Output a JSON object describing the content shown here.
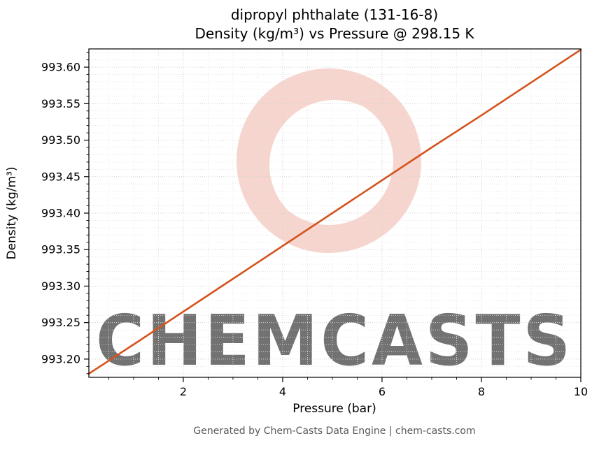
{
  "title": {
    "line1": "dipropyl phthalate (131-16-8)",
    "line2": "Density (kg/m³) vs Pressure @ 298.15 K"
  },
  "axes": {
    "xlabel": "Pressure (bar)",
    "ylabel": "Density (kg/m³)"
  },
  "footer": {
    "text": "Generated by Chem-Casts Data Engine | chem-casts.com"
  },
  "watermark": {
    "text": "CHEMCASTS"
  },
  "colors": {
    "line": "#d4541e",
    "grid_major": "#d2d2d2",
    "grid_minor": "#e4e4e4",
    "axis_frame": "#000000",
    "watermark": "#efb3a7",
    "footer_text": "#595959"
  },
  "chart_data": {
    "type": "line",
    "title": "dipropyl phthalate (131-16-8) Density (kg/m³) vs Pressure @ 298.15 K",
    "xlabel": "Pressure (bar)",
    "ylabel": "Density (kg/m³)",
    "x": [
      0.1,
      1,
      2,
      3,
      4,
      5,
      6,
      7,
      8,
      9,
      10
    ],
    "y": [
      993.18,
      993.22,
      993.265,
      993.31,
      993.355,
      993.4,
      993.445,
      993.49,
      993.534,
      993.579,
      993.624
    ],
    "xlim": [
      0.1,
      10
    ],
    "ylim": [
      993.175,
      993.625
    ],
    "xticks": [
      2,
      4,
      6,
      8,
      10
    ],
    "yticks": [
      993.2,
      993.25,
      993.3,
      993.35,
      993.4,
      993.45,
      993.5,
      993.55,
      993.6
    ],
    "x_minor_step": 0.5,
    "y_minor_step": 0.01,
    "grid": true,
    "legend": false
  }
}
